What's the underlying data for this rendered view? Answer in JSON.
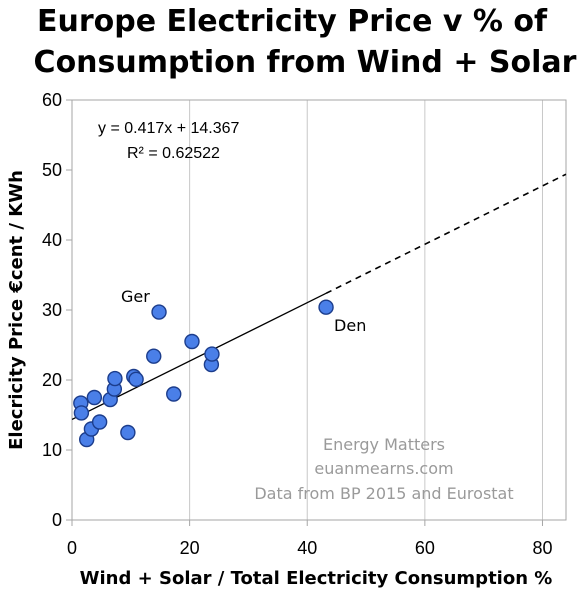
{
  "chart_data": {
    "type": "scatter",
    "title_line1": "Europe Electricity Price v % of",
    "title_line2": "Consumption from Wind + Solar",
    "xlabel": "Wind + Solar / Total Electricity Consumption %",
    "ylabel": "Elecricity Price €cent / KWh",
    "xlim": [
      0,
      84
    ],
    "ylim": [
      0,
      60
    ],
    "xticks": [
      "0",
      "20",
      "40",
      "60",
      "80"
    ],
    "yticks": [
      "0",
      "10",
      "20",
      "30",
      "40",
      "50",
      "60"
    ],
    "xtick_values": [
      0,
      20,
      40,
      60,
      80
    ],
    "ytick_values": [
      0,
      10,
      20,
      30,
      40,
      50,
      60
    ],
    "grid": "vertical",
    "point_color": "#4a7fe8",
    "points": [
      {
        "x": 1.5,
        "y": 16.7
      },
      {
        "x": 1.6,
        "y": 15.3
      },
      {
        "x": 2.5,
        "y": 11.5
      },
      {
        "x": 3.3,
        "y": 13.0
      },
      {
        "x": 3.8,
        "y": 17.5
      },
      {
        "x": 4.7,
        "y": 14.0
      },
      {
        "x": 6.5,
        "y": 17.2
      },
      {
        "x": 7.2,
        "y": 18.7
      },
      {
        "x": 7.3,
        "y": 20.2
      },
      {
        "x": 9.5,
        "y": 12.5
      },
      {
        "x": 10.5,
        "y": 20.5
      },
      {
        "x": 10.9,
        "y": 20.1
      },
      {
        "x": 13.9,
        "y": 23.4
      },
      {
        "x": 14.8,
        "y": 29.7,
        "label": "Ger"
      },
      {
        "x": 17.3,
        "y": 18.0
      },
      {
        "x": 20.4,
        "y": 25.5
      },
      {
        "x": 23.7,
        "y": 22.2
      },
      {
        "x": 23.8,
        "y": 23.7
      },
      {
        "x": 43.2,
        "y": 30.4,
        "label": "Den"
      }
    ],
    "trendline": {
      "slope": 0.417,
      "intercept": 14.367,
      "solid_x": [
        0,
        43.2
      ],
      "dashed_x": [
        43.2,
        84
      ]
    },
    "equation": "y = 0.417x + 14.367",
    "r_squared": "R² = 0.62522",
    "credit_lines": [
      "Energy Matters",
      "euanmearns.com",
      "Data from BP 2015 and Eurostat"
    ]
  }
}
